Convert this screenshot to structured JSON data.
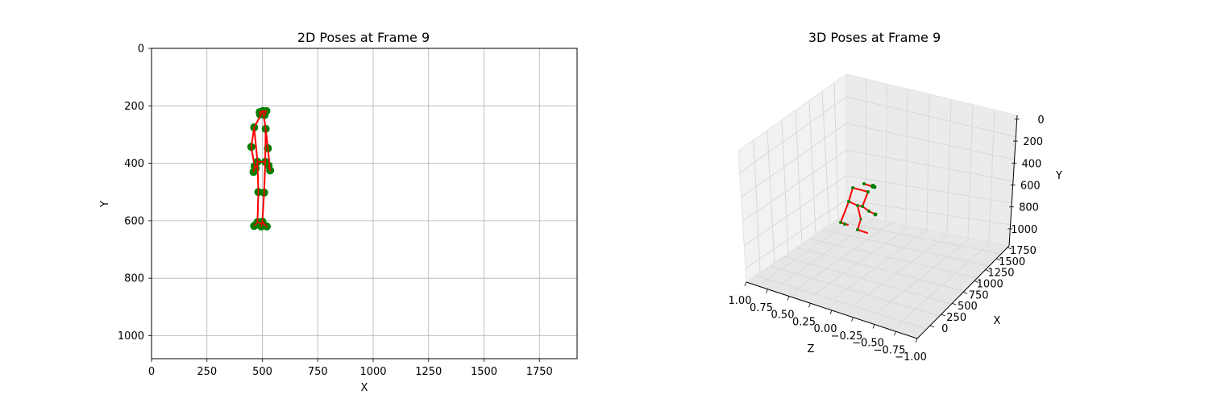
{
  "chart_data": [
    {
      "type": "scatter",
      "title": "2D Poses at Frame 9",
      "xlabel": "X",
      "ylabel": "Y",
      "xlim": [
        0,
        1920
      ],
      "ylim": [
        1080,
        0
      ],
      "y_inverted": true,
      "grid": true,
      "xticks": [
        0,
        250,
        500,
        750,
        1000,
        1250,
        1500,
        1750
      ],
      "yticks": [
        0,
        200,
        400,
        600,
        800,
        1000
      ],
      "colors": {
        "joint": "#008000",
        "skeleton": "#ff0000"
      },
      "joints": [
        [
          503,
          218
        ],
        [
          488,
          222
        ],
        [
          518,
          218
        ],
        [
          490,
          230
        ],
        [
          510,
          232
        ],
        [
          463,
          275
        ],
        [
          515,
          280
        ],
        [
          450,
          343
        ],
        [
          525,
          348
        ],
        [
          465,
          410
        ],
        [
          535,
          425
        ],
        [
          478,
          395
        ],
        [
          513,
          395
        ],
        [
          482,
          500
        ],
        [
          508,
          502
        ],
        [
          478,
          605
        ],
        [
          500,
          603
        ],
        [
          463,
          618
        ],
        [
          495,
          620
        ],
        [
          520,
          620
        ],
        [
          460,
          430
        ],
        [
          528,
          408
        ],
        [
          470,
          418
        ],
        [
          497,
          610
        ],
        [
          510,
          616
        ]
      ],
      "bones": [
        [
          0,
          1
        ],
        [
          0,
          2
        ],
        [
          1,
          3
        ],
        [
          2,
          4
        ],
        [
          0,
          5
        ],
        [
          0,
          6
        ],
        [
          5,
          7
        ],
        [
          6,
          8
        ],
        [
          7,
          9
        ],
        [
          8,
          10
        ],
        [
          5,
          11
        ],
        [
          6,
          12
        ],
        [
          11,
          12
        ],
        [
          11,
          13
        ],
        [
          12,
          14
        ],
        [
          13,
          15
        ],
        [
          14,
          16
        ],
        [
          15,
          17
        ],
        [
          16,
          18
        ],
        [
          16,
          19
        ],
        [
          9,
          20
        ],
        [
          10,
          21
        ],
        [
          11,
          22
        ],
        [
          15,
          23
        ],
        [
          16,
          24
        ]
      ]
    },
    {
      "type": "scatter3d",
      "title": "3D Poses at Frame 9",
      "xlabel": "Z",
      "ylabel": "X",
      "zlabel": "Y",
      "z_ticks": [
        "1.00",
        "0.75",
        "0.50",
        "0.25",
        "0.00",
        "−0.25",
        "−0.50",
        "−0.75",
        "−1.00"
      ],
      "x_ticks": [
        "0",
        "250",
        "500",
        "750",
        "1000",
        "1250",
        "1500",
        "1750"
      ],
      "y_ticks": [
        "0",
        "200",
        "400",
        "600",
        "800",
        "1000"
      ],
      "grid": true,
      "colors": {
        "joint": "#008000",
        "skeleton": "#ff0000"
      }
    }
  ]
}
